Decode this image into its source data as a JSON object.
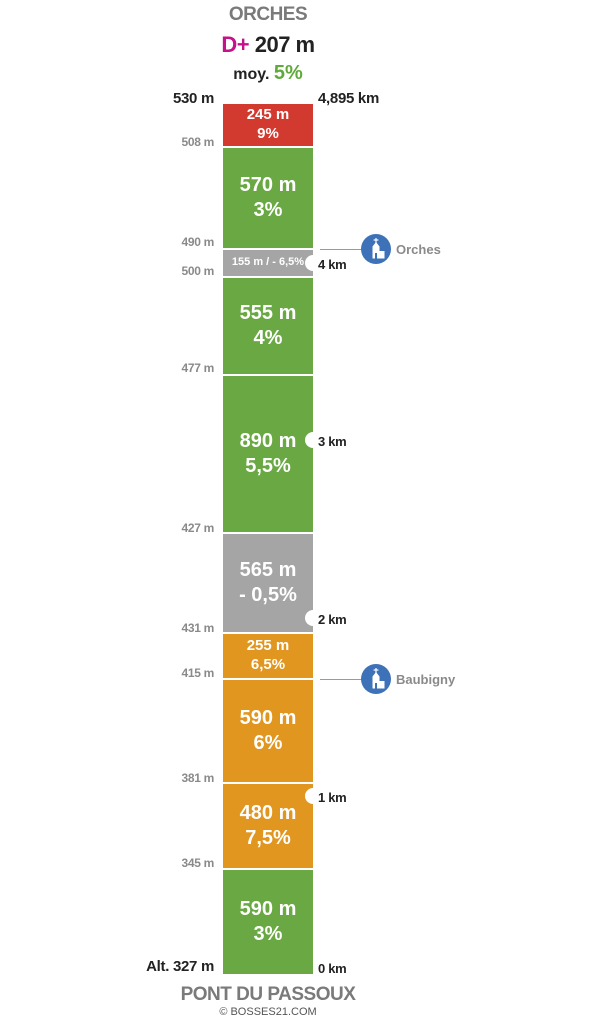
{
  "header": {
    "summit": "ORCHES",
    "dplus_label": "D+",
    "dplus_value": "207 m",
    "avg_label": "moy.",
    "avg_value": "5%"
  },
  "footer": {
    "start": "PONT DU PASSOUX",
    "credit": "© BOSSES21.COM"
  },
  "colors": {
    "red": "#d23a2f",
    "green": "#6aa843",
    "grey": "#a5a5a5",
    "orange": "#e0961f",
    "dplus": "#c5128a",
    "avg": "#5faa3a",
    "town_icon": "#3d72b8"
  },
  "segments": [
    {
      "length": "245 m",
      "grade": "9%",
      "color": "red"
    },
    {
      "length": "570 m",
      "grade": "3%",
      "color": "green"
    },
    {
      "length": "155 m / - 6,5%",
      "grade": "",
      "color": "grey"
    },
    {
      "length": "555 m",
      "grade": "4%",
      "color": "green"
    },
    {
      "length": "890 m",
      "grade": "5,5%",
      "color": "green"
    },
    {
      "length": "565 m",
      "grade": "- 0,5%",
      "color": "grey"
    },
    {
      "length": "255 m",
      "grade": "6,5%",
      "color": "orange"
    },
    {
      "length": "590 m",
      "grade": "6%",
      "color": "orange"
    },
    {
      "length": "480 m",
      "grade": "7,5%",
      "color": "orange"
    },
    {
      "length": "590 m",
      "grade": "3%",
      "color": "green"
    }
  ],
  "altitudes": {
    "top": "530 m",
    "a508": "508 m",
    "a490": "490 m",
    "a500": "500 m",
    "a477": "477 m",
    "a427": "427 m",
    "a431": "431 m",
    "a415": "415 m",
    "a381": "381 m",
    "a345": "345 m",
    "bottom": "Alt. 327 m"
  },
  "distances": {
    "total": "4,895 km",
    "k4": "4 km",
    "k3": "3 km",
    "k2": "2 km",
    "k1": "1 km",
    "k0": "0 km"
  },
  "towns": {
    "orches": {
      "name": "Orches",
      "icon": "church-icon"
    },
    "baubigny": {
      "name": "Baubigny",
      "icon": "church-icon"
    }
  }
}
